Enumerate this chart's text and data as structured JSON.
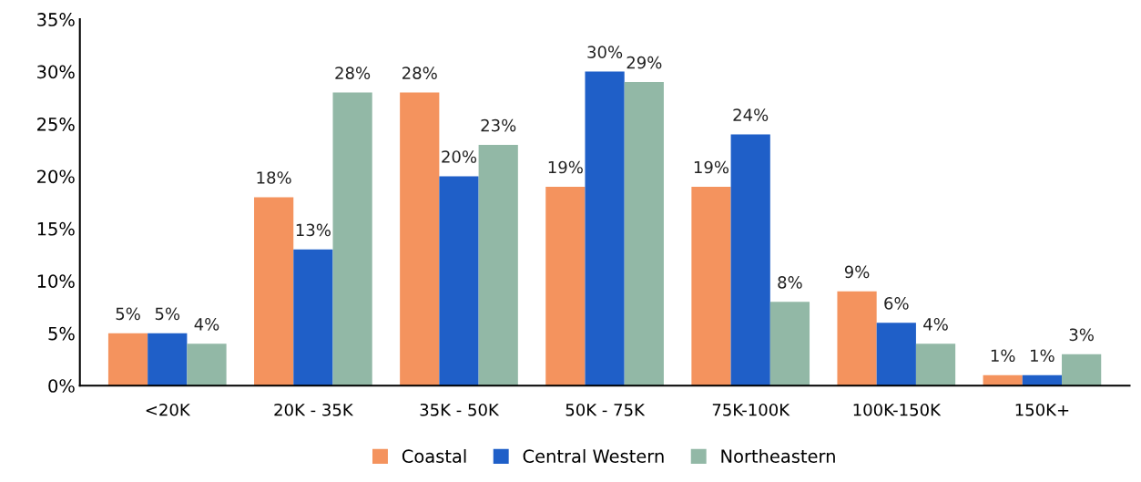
{
  "chart_data": {
    "type": "bar",
    "categories": [
      "<20K",
      "20K - 35K",
      "35K - 50K",
      "50K - 75K",
      "75K-100K",
      "100K-150K",
      "150K+"
    ],
    "series": [
      {
        "name": "Coastal",
        "color": "#f4935e",
        "values": [
          5,
          18,
          28,
          19,
          19,
          9,
          1
        ],
        "value_labels": [
          "5%",
          "18%",
          "28%",
          "19%",
          "19%",
          "9%",
          "1%"
        ]
      },
      {
        "name": "Central Western",
        "color": "#1f5fc8",
        "values": [
          5,
          13,
          20,
          30,
          24,
          6,
          1
        ],
        "value_labels": [
          "5%",
          "13%",
          "20%",
          "30%",
          "24%",
          "6%",
          "1%"
        ]
      },
      {
        "name": "Northeastern",
        "color": "#92b8a6",
        "values": [
          4,
          28,
          23,
          29,
          8,
          4,
          3
        ],
        "value_labels": [
          "4%",
          "28%",
          "23%",
          "29%",
          "8%",
          "4%",
          "3%"
        ]
      }
    ],
    "ylim": [
      0,
      35
    ],
    "yticks": [
      {
        "value": 0,
        "label": "0%"
      },
      {
        "value": 5,
        "label": "5%"
      },
      {
        "value": 10,
        "label": "10%"
      },
      {
        "value": 15,
        "label": "15%"
      },
      {
        "value": 20,
        "label": "20%"
      },
      {
        "value": 25,
        "label": "25%"
      },
      {
        "value": 30,
        "label": "30%"
      },
      {
        "value": 35,
        "label": "35%"
      }
    ],
    "grid": false,
    "legend": "bottom"
  }
}
